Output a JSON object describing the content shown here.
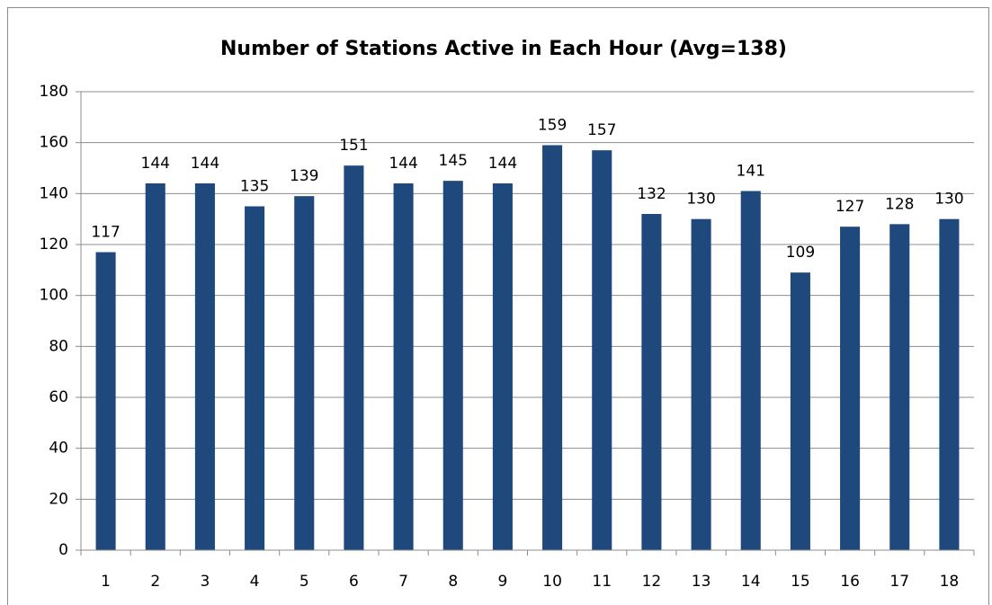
{
  "chart_data": {
    "type": "bar",
    "title": "Number of Stations Active in Each Hour (Avg=138)",
    "categories": [
      "1",
      "2",
      "3",
      "4",
      "5",
      "6",
      "7",
      "8",
      "9",
      "10",
      "11",
      "12",
      "13",
      "14",
      "15",
      "16",
      "17",
      "18"
    ],
    "values": [
      117,
      144,
      144,
      135,
      139,
      151,
      144,
      145,
      144,
      159,
      157,
      132,
      130,
      141,
      109,
      127,
      128,
      130
    ],
    "color": "#1f497d",
    "ylim": [
      0,
      180
    ],
    "yticks": [
      0,
      20,
      40,
      60,
      80,
      100,
      120,
      140,
      160,
      180
    ],
    "grid": true
  }
}
